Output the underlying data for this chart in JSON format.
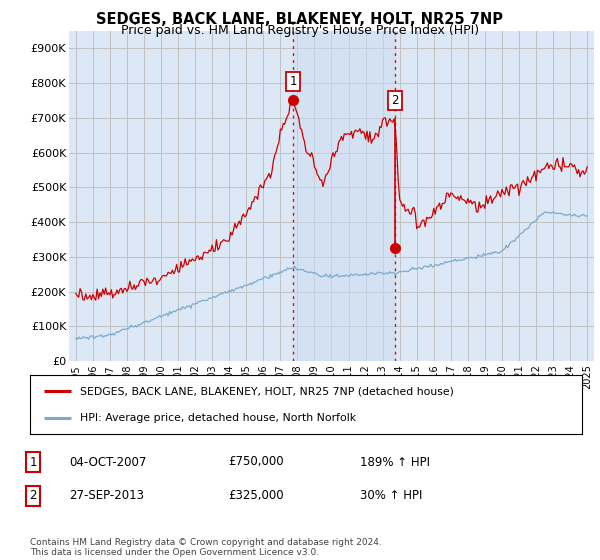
{
  "title": "SEDGES, BACK LANE, BLAKENEY, HOLT, NR25 7NP",
  "subtitle": "Price paid vs. HM Land Registry's House Price Index (HPI)",
  "background_color": "#ffffff",
  "plot_bg_color": "#dce8f5",
  "grid_color": "#bbbbbb",
  "red_line_color": "#cc0000",
  "blue_line_color": "#7aaad0",
  "shade_color": "#ccddf0",
  "ylim": [
    0,
    950000
  ],
  "yticks": [
    0,
    100000,
    200000,
    300000,
    400000,
    500000,
    600000,
    700000,
    800000,
    900000
  ],
  "ytick_labels": [
    "£0",
    "£100K",
    "£200K",
    "£300K",
    "£400K",
    "£500K",
    "£600K",
    "£700K",
    "£800K",
    "£900K"
  ],
  "xlim_start": 1994.6,
  "xlim_end": 2025.4,
  "marker1_x": 2007.75,
  "marker1_y": 750000,
  "marker2_x": 2013.73,
  "marker2_y": 325000,
  "marker2_red_line_y": 695000,
  "legend1": "SEDGES, BACK LANE, BLAKENEY, HOLT, NR25 7NP (detached house)",
  "legend2": "HPI: Average price, detached house, North Norfolk",
  "transaction1": {
    "label": "1",
    "date": "04-OCT-2007",
    "price": "£750,000",
    "hpi": "189% ↑ HPI"
  },
  "transaction2": {
    "label": "2",
    "date": "27-SEP-2013",
    "price": "£325,000",
    "hpi": "30% ↑ HPI"
  },
  "footer": "Contains HM Land Registry data © Crown copyright and database right 2024.\nThis data is licensed under the Open Government Licence v3.0."
}
